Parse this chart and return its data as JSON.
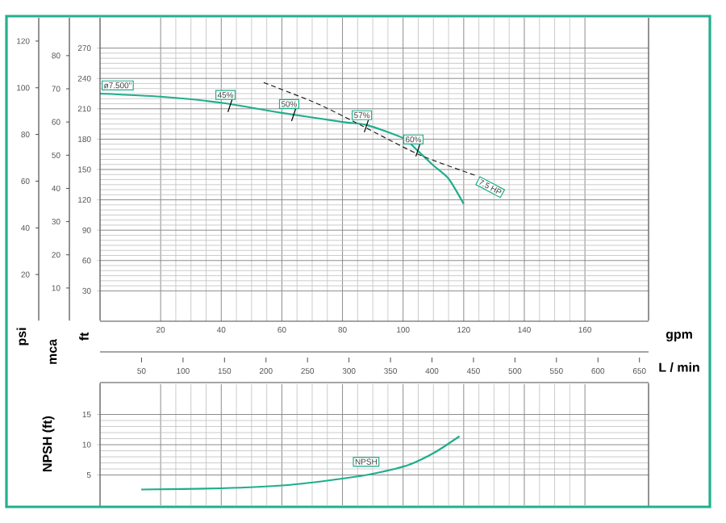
{
  "chart_data": [
    {
      "type": "line",
      "xlabel": "gpm",
      "x2label": "L / min",
      "ylabel": "ft",
      "y2label": "mca",
      "y3label": "psi",
      "xlim": [
        0,
        181
      ],
      "xticks": [
        20,
        40,
        60,
        80,
        100,
        120,
        140,
        160
      ],
      "x2lim": [
        0,
        661
      ],
      "x2ticks": [
        50,
        100,
        150,
        200,
        250,
        300,
        350,
        400,
        450,
        500,
        550,
        600,
        650
      ],
      "ylim": [
        0,
        300
      ],
      "yticks": [
        30,
        60,
        90,
        120,
        150,
        180,
        210,
        240,
        270
      ],
      "y2lim": [
        0,
        91.4
      ],
      "y2ticks": [
        10,
        20,
        30,
        40,
        50,
        60,
        70,
        80
      ],
      "y3lim": [
        0,
        130
      ],
      "y3ticks": [
        20,
        40,
        60,
        80,
        100,
        120
      ],
      "grid": true,
      "series": [
        {
          "name": "ø7.500\"",
          "color": "#1fae8c",
          "x": [
            0,
            20,
            40,
            60,
            80,
            88,
            100,
            105,
            110,
            115,
            120
          ],
          "values": [
            225,
            222,
            216,
            206,
            197,
            194,
            181,
            168,
            154,
            141,
            116
          ]
        },
        {
          "name": "7.5 HP",
          "color": "#222222",
          "line_style": "dashed",
          "x": [
            54,
            71,
            84,
            105,
            124
          ],
          "values": [
            236,
            216,
            197,
            165,
            144
          ]
        }
      ],
      "annotations": [
        {
          "text": "45%",
          "x": 43,
          "y": 214
        },
        {
          "text": "50%",
          "x": 64,
          "y": 205
        },
        {
          "text": "57%",
          "x": 88,
          "y": 194
        },
        {
          "text": "60%",
          "x": 105,
          "y": 170
        }
      ]
    },
    {
      "type": "line",
      "ylabel": "NPSH (ft)",
      "xlim": [
        0,
        181
      ],
      "xticks": [
        20,
        40,
        60,
        80,
        100,
        120,
        140,
        160
      ],
      "ylim": [
        0,
        20
      ],
      "yticks": [
        5,
        10,
        15
      ],
      "grid": true,
      "tick_labels": "y",
      "series": [
        {
          "name": "NPSH",
          "color": "#1fae8c",
          "x": [
            13.6,
            40,
            61,
            80,
            91,
            102,
            110.7,
            118.6
          ],
          "values": [
            2.6,
            2.8,
            3.3,
            4.4,
            5.3,
            6.7,
            8.8,
            11.4
          ]
        }
      ]
    }
  ]
}
